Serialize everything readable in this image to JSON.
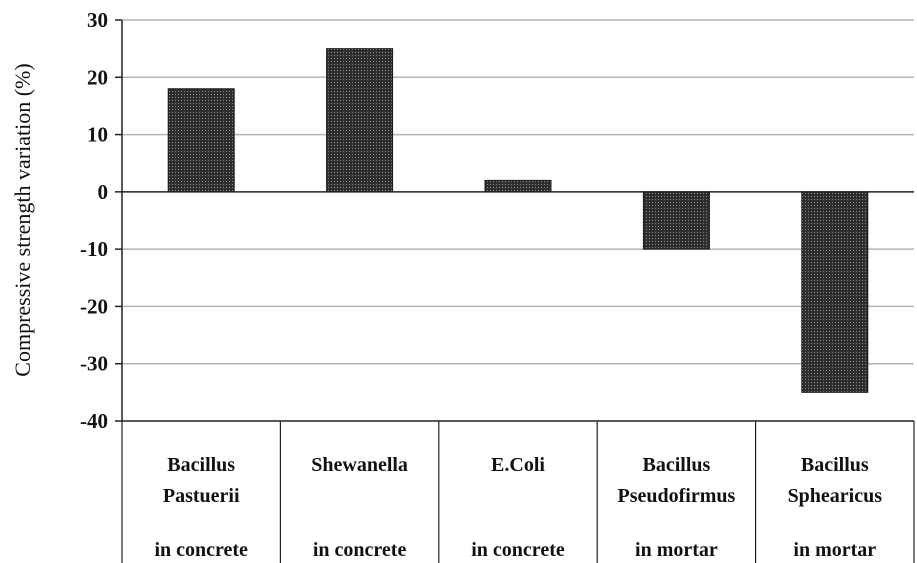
{
  "chart_data": {
    "type": "bar",
    "title": "",
    "xlabel": "",
    "ylabel": "Compressive strength variation (%)",
    "ylim": [
      -40,
      30
    ],
    "yticks": [
      "30",
      "20",
      "10",
      "0",
      "-10",
      "-20",
      "-30",
      "-40"
    ],
    "grid": true,
    "legend": "none",
    "categories": [
      {
        "line1": "Bacillus",
        "line2": "Pastuerii",
        "line3": "in concrete"
      },
      {
        "line1": "Shewanella",
        "line2": "",
        "line3": "in concrete"
      },
      {
        "line1": "E.Coli",
        "line2": "",
        "line3": "in concrete"
      },
      {
        "line1": "Bacillus",
        "line2": "Pseudofirmus",
        "line3": "in mortar"
      },
      {
        "line1": "Bacillus",
        "line2": "Sphearicus",
        "line3": "in mortar"
      }
    ],
    "values": [
      18,
      25,
      2,
      -10,
      -35
    ],
    "colors": {
      "bar": "#3a3a3a",
      "grid": "#b4b4b4",
      "axis": "#222222"
    }
  }
}
